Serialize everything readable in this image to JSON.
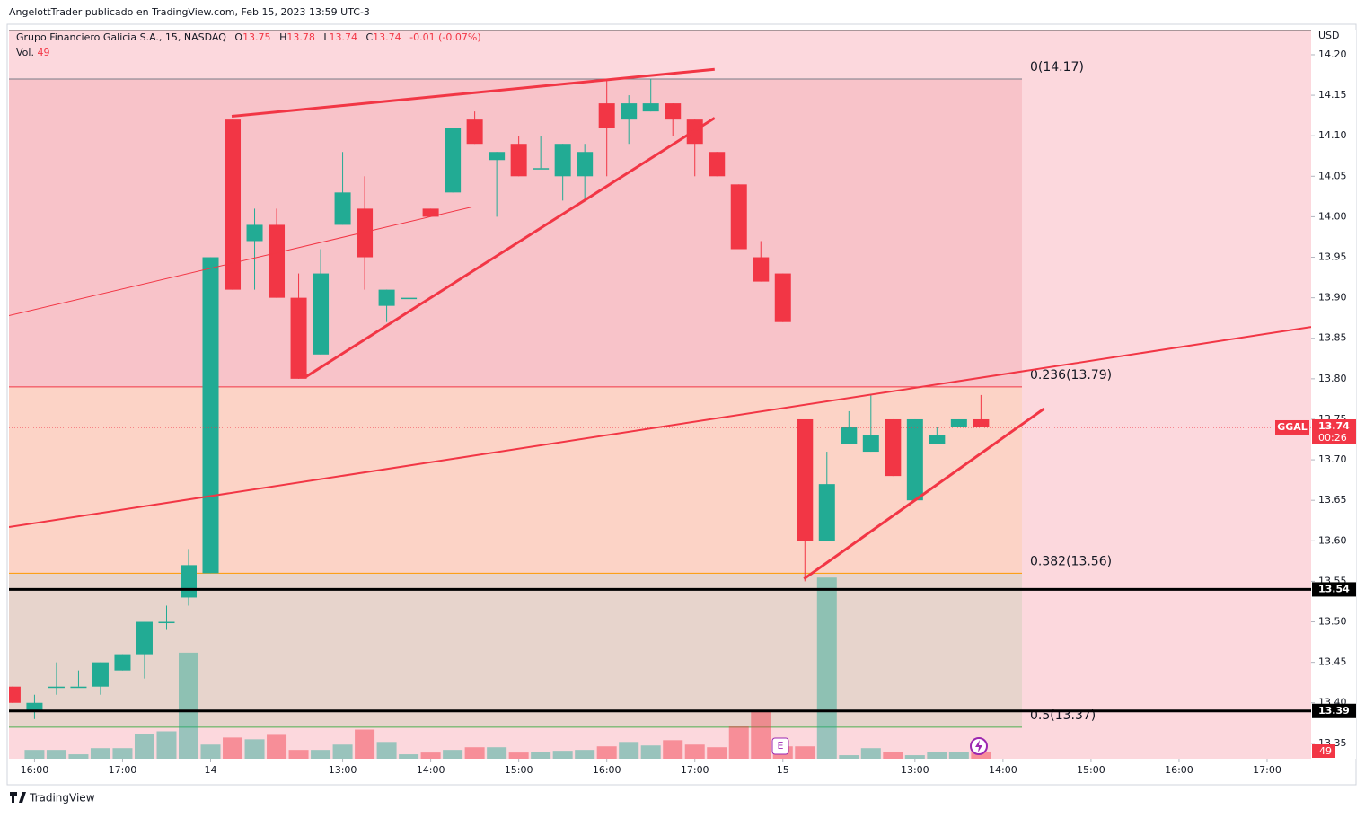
{
  "header": {
    "publisher": "AngelottTrader publicado en TradingView.com, Feb 15, 2023 13:59 UTC-3",
    "footer": "TradingView"
  },
  "chart_data": {
    "type": "candlestick",
    "legend": {
      "symbol": "Grupo Financiero Galicia S.A., 15, NASDAQ",
      "o_label": "O",
      "o": "13.75",
      "h_label": "H",
      "h": "13.78",
      "l_label": "L",
      "l": "13.74",
      "c_label": "C",
      "c": "13.74",
      "change": "-0.01 (-0.07%)",
      "vol_label": "Vol.",
      "vol": "49"
    },
    "currency": "USD",
    "symbol_tag": "GGAL",
    "countdown": "00:26",
    "earnings_marker": "E",
    "up_color": "#22ab94",
    "down_color": "#f23645",
    "open": [
      13.42,
      13.39,
      13.42,
      13.42,
      13.42,
      13.44,
      13.46,
      13.5,
      13.53,
      13.56,
      14.12,
      13.97,
      13.99,
      13.9,
      13.83,
      13.99,
      14.01,
      13.89,
      13.9,
      14.01,
      14.03,
      14.12,
      14.07,
      14.09,
      14.06,
      14.05,
      14.05,
      14.14,
      14.12,
      14.13,
      14.14,
      14.12,
      14.08,
      14.04,
      13.95,
      13.93,
      13.75,
      13.6,
      13.72,
      13.71,
      13.75,
      13.65,
      13.72,
      13.74,
      13.75
    ],
    "high": [
      13.42,
      13.41,
      13.45,
      13.44,
      13.45,
      13.46,
      13.5,
      13.52,
      13.59,
      13.95,
      14.12,
      14.01,
      14.01,
      13.93,
      13.96,
      14.08,
      14.05,
      13.91,
      13.9,
      14.01,
      14.11,
      14.13,
      14.08,
      14.1,
      14.1,
      14.09,
      14.09,
      14.17,
      14.15,
      14.17,
      14.14,
      14.12,
      14.08,
      14.04,
      13.97,
      13.93,
      13.75,
      13.71,
      13.76,
      13.78,
      13.75,
      13.75,
      13.74,
      13.75,
      13.78
    ],
    "low": [
      13.4,
      13.38,
      13.41,
      13.42,
      13.41,
      13.44,
      13.43,
      13.49,
      13.52,
      13.56,
      13.91,
      13.91,
      13.9,
      13.8,
      13.83,
      13.99,
      13.91,
      13.87,
      13.9,
      14.0,
      14.03,
      14.09,
      14.0,
      14.05,
      14.06,
      14.02,
      14.02,
      14.05,
      14.09,
      14.13,
      14.1,
      14.05,
      14.05,
      13.96,
      13.92,
      13.87,
      13.55,
      13.6,
      13.72,
      13.71,
      13.68,
      13.65,
      13.72,
      13.74,
      13.74
    ],
    "close": [
      13.4,
      13.4,
      13.42,
      13.42,
      13.45,
      13.46,
      13.5,
      13.5,
      13.57,
      13.95,
      13.91,
      13.99,
      13.9,
      13.8,
      13.93,
      14.03,
      13.95,
      13.91,
      13.9,
      14.0,
      14.11,
      14.09,
      14.08,
      14.05,
      14.06,
      14.09,
      14.08,
      14.11,
      14.14,
      14.14,
      14.12,
      14.09,
      14.05,
      13.96,
      13.92,
      13.87,
      13.6,
      13.67,
      13.74,
      13.73,
      13.68,
      13.75,
      13.73,
      13.75,
      13.74
    ],
    "volume": [
      null,
      60,
      60,
      30,
      72,
      72,
      168,
      186,
      720,
      96,
      144,
      132,
      162,
      60,
      60,
      96,
      198,
      114,
      30,
      42,
      60,
      78,
      78,
      42,
      48,
      54,
      60,
      84,
      114,
      90,
      126,
      96,
      78,
      222,
      330,
      84,
      84,
      1230,
      24,
      72,
      48,
      24,
      48,
      48,
      49
    ],
    "volume_ylim": [
      0,
      4950
    ],
    "xlim": [
      -0.16,
      59.0
    ],
    "xticks": [
      {
        "value": 1,
        "label": "16:00"
      },
      {
        "value": 5,
        "label": "17:00"
      },
      {
        "value": 9,
        "label": "14"
      },
      {
        "value": 15,
        "label": "13:00"
      },
      {
        "value": 19,
        "label": "14:00"
      },
      {
        "value": 23,
        "label": "15:00"
      },
      {
        "value": 27,
        "label": "16:00"
      },
      {
        "value": 31,
        "label": "17:00"
      },
      {
        "value": 35,
        "label": "15"
      },
      {
        "value": 41,
        "label": "13:00"
      },
      {
        "value": 45,
        "label": "14:00"
      },
      {
        "value": 49,
        "label": "15:00"
      },
      {
        "value": 53,
        "label": "16:00"
      },
      {
        "value": 57,
        "label": "17:00"
      }
    ],
    "ylim": [
      13.331,
      14.231
    ],
    "yticks": [
      13.35,
      {
        "value": 13.4,
        "label": "13.40"
      },
      13.45,
      {
        "value": 13.5,
        "label": "13.50"
      },
      13.55,
      {
        "value": 13.6,
        "label": "13.60"
      },
      13.65,
      {
        "value": 13.7,
        "label": "13.70"
      },
      13.75,
      {
        "value": 13.8,
        "label": "13.80"
      },
      13.85,
      {
        "value": 13.9,
        "label": "13.90"
      },
      13.95,
      {
        "value": 14.0,
        "label": "14.00"
      },
      14.05,
      {
        "value": 14.1,
        "label": "14.10"
      },
      14.15,
      {
        "value": 14.2,
        "label": "14.20"
      }
    ],
    "fib_levels": [
      {
        "value": 14.17,
        "label": "0(14.17)",
        "color": "#787b86",
        "band": "#f8c3c9"
      },
      {
        "value": 13.79,
        "label": "0.236(13.79)",
        "color": "#f23645",
        "band": "#fcd3c6"
      },
      {
        "value": 13.56,
        "label": "0.382(13.56)",
        "color": "#ff9800",
        "band": "#e7d4cc"
      },
      {
        "value": 13.37,
        "label": "0.5(13.37)",
        "color": "#4caf50",
        "band": null
      }
    ],
    "levels": [
      13.54,
      13.39
    ],
    "trendlines": [
      {
        "x": [
          9.96,
          31.9
        ],
        "y": [
          14.124,
          14.182
        ],
        "width": 3
      },
      {
        "x": [
          13.3,
          31.9
        ],
        "y": [
          13.802,
          14.122
        ],
        "width": 3
      },
      {
        "x": [
          -0.16,
          20.86
        ],
        "y": [
          13.878,
          14.012
        ],
        "width": 1
      },
      {
        "x": [
          -0.16,
          59.0
        ],
        "y": [
          13.617,
          13.864
        ],
        "width": 2
      },
      {
        "x": [
          35.96,
          46.86
        ],
        "y": [
          13.553,
          13.763
        ],
        "width": 3
      }
    ]
  }
}
